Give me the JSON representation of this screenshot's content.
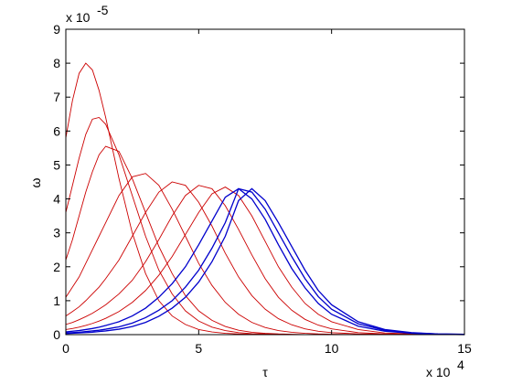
{
  "chart_data": {
    "type": "line",
    "xlabel": "τ",
    "ylabel": "ω",
    "x_multiplier": {
      "base": "x 10",
      "exponent": "4"
    },
    "y_multiplier": {
      "base": "x 10",
      "exponent": "-5"
    },
    "x": [
      0,
      0.25,
      0.5,
      0.75,
      1,
      1.25,
      1.5,
      2,
      2.5,
      3,
      3.5,
      4,
      4.5,
      5,
      5.5,
      6,
      6.5,
      7,
      7.5,
      8,
      8.5,
      9,
      9.5,
      10,
      11,
      12,
      13,
      14,
      15
    ],
    "series": [
      {
        "color": "#cc0000",
        "values": [
          5.8,
          6.9,
          7.7,
          8.0,
          7.8,
          7.2,
          6.4,
          4.6,
          3.0,
          1.8,
          1.0,
          0.55,
          0.3,
          0.15,
          0.08,
          0.04,
          0.02,
          0.01,
          0,
          0,
          0,
          0,
          0,
          0,
          0,
          0,
          0,
          0,
          0
        ]
      },
      {
        "color": "#cc0000",
        "values": [
          3.6,
          4.4,
          5.2,
          5.9,
          6.35,
          6.4,
          6.2,
          5.3,
          4.1,
          2.9,
          1.9,
          1.2,
          0.7,
          0.4,
          0.22,
          0.12,
          0.06,
          0.03,
          0.02,
          0.01,
          0,
          0,
          0,
          0,
          0,
          0,
          0,
          0,
          0
        ]
      },
      {
        "color": "#cc0000",
        "values": [
          2.2,
          2.8,
          3.5,
          4.2,
          4.8,
          5.3,
          5.55,
          5.4,
          4.6,
          3.6,
          2.6,
          1.8,
          1.15,
          0.7,
          0.42,
          0.24,
          0.13,
          0.07,
          0.04,
          0.02,
          0.01,
          0,
          0,
          0,
          0,
          0,
          0,
          0,
          0
        ]
      },
      {
        "color": "#cc0000",
        "values": [
          1.1,
          1.4,
          1.7,
          2.1,
          2.5,
          2.9,
          3.3,
          4.1,
          4.65,
          4.75,
          4.4,
          3.7,
          2.9,
          2.1,
          1.45,
          0.95,
          0.6,
          0.36,
          0.21,
          0.12,
          0.07,
          0.04,
          0.02,
          0.01,
          0,
          0,
          0,
          0,
          0
        ]
      },
      {
        "color": "#cc0000",
        "values": [
          0.55,
          0.68,
          0.82,
          1.0,
          1.2,
          1.4,
          1.65,
          2.2,
          2.9,
          3.6,
          4.2,
          4.5,
          4.4,
          3.9,
          3.2,
          2.4,
          1.7,
          1.15,
          0.75,
          0.47,
          0.29,
          0.17,
          0.1,
          0.06,
          0.02,
          0.01,
          0,
          0,
          0
        ]
      },
      {
        "color": "#cc0000",
        "values": [
          0.3,
          0.36,
          0.44,
          0.53,
          0.63,
          0.75,
          0.88,
          1.2,
          1.6,
          2.15,
          2.8,
          3.5,
          4.1,
          4.4,
          4.3,
          3.8,
          3.1,
          2.35,
          1.65,
          1.1,
          0.72,
          0.45,
          0.28,
          0.17,
          0.06,
          0.02,
          0.01,
          0,
          0
        ]
      },
      {
        "color": "#cc0000",
        "values": [
          0.15,
          0.18,
          0.22,
          0.27,
          0.33,
          0.4,
          0.48,
          0.68,
          0.95,
          1.3,
          1.75,
          2.3,
          2.95,
          3.6,
          4.15,
          4.35,
          4.1,
          3.5,
          2.75,
          2.0,
          1.4,
          0.92,
          0.6,
          0.38,
          0.15,
          0.05,
          0.02,
          0.01,
          0
        ]
      },
      {
        "color": "#0000cc",
        "values": [
          0.08,
          0.1,
          0.12,
          0.15,
          0.18,
          0.22,
          0.27,
          0.38,
          0.55,
          0.78,
          1.1,
          1.5,
          2.0,
          2.65,
          3.35,
          4.05,
          4.3,
          4.0,
          3.4,
          2.65,
          1.95,
          1.38,
          0.92,
          0.6,
          0.25,
          0.1,
          0.04,
          0.01,
          0
        ]
      },
      {
        "color": "#0000cc",
        "values": [
          0.05,
          0.06,
          0.07,
          0.09,
          0.11,
          0.13,
          0.16,
          0.23,
          0.34,
          0.5,
          0.72,
          1.0,
          1.4,
          1.9,
          2.55,
          3.3,
          4.3,
          4.2,
          3.7,
          3.0,
          2.3,
          1.65,
          1.12,
          0.75,
          0.32,
          0.13,
          0.05,
          0.02,
          0.01
        ]
      },
      {
        "color": "#0000cc",
        "values": [
          0.03,
          0.04,
          0.05,
          0.06,
          0.07,
          0.09,
          0.11,
          0.16,
          0.24,
          0.36,
          0.54,
          0.78,
          1.1,
          1.55,
          2.15,
          2.9,
          3.95,
          4.3,
          3.95,
          3.3,
          2.6,
          1.9,
          1.3,
          0.88,
          0.38,
          0.15,
          0.06,
          0.02,
          0.01
        ]
      }
    ],
    "xlim": [
      0,
      15
    ],
    "ylim": [
      0,
      9
    ],
    "xticks": [
      0,
      5,
      10,
      15
    ],
    "yticks": [
      0,
      1,
      2,
      3,
      4,
      5,
      6,
      7,
      8,
      9
    ],
    "grid": false
  }
}
